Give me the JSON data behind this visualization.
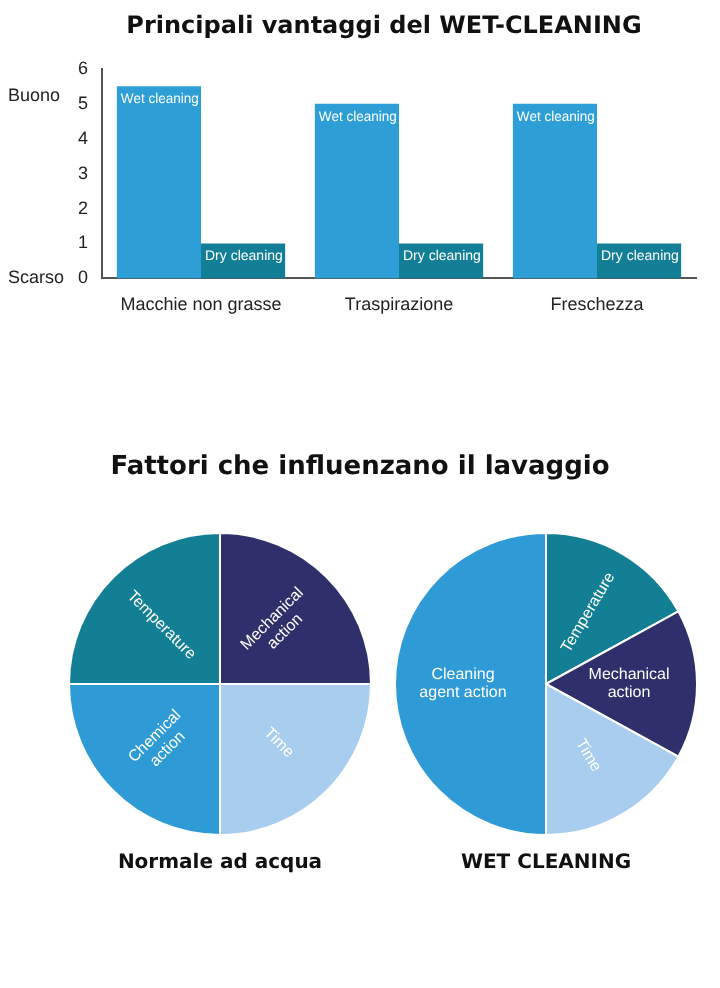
{
  "chart_data": [
    {
      "type": "bar",
      "title": "Principali vantaggi del WET-CLEANING",
      "categories": [
        "Macchie non grasse",
        "Traspirazione",
        "Freschezza"
      ],
      "series": [
        {
          "name": "Wet cleaning",
          "color": "#2e9fd6",
          "values": [
            5.5,
            5,
            5
          ]
        },
        {
          "name": "Dry cleaning",
          "color": "#127f96",
          "values": [
            1,
            1,
            1
          ]
        }
      ],
      "ylim": [
        0,
        6
      ],
      "yticks": [
        0,
        1,
        2,
        3,
        4,
        5,
        6
      ],
      "annotations": [
        "Buono",
        "Scarso"
      ],
      "grid": false,
      "legend": false
    },
    {
      "type": "pie",
      "title": "Fattori che influenzano il lavaggio",
      "subtitle": "Normale ad acqua",
      "categories": [
        "Mechanical action",
        "Time",
        "Chemical action",
        "Temperature"
      ],
      "values": [
        25,
        25,
        25,
        25
      ],
      "colors": [
        "#2f2f6b",
        "#a8cdef",
        "#2e9bd6",
        "#137f95"
      ],
      "legend": false
    },
    {
      "type": "pie",
      "subtitle": "WET CLEANING",
      "categories": [
        "Temperature",
        "Mechanical action",
        "Time",
        "Cleaning agent action"
      ],
      "values": [
        17,
        16,
        17,
        50
      ],
      "colors": [
        "#137f95",
        "#2f2f6b",
        "#a8cdef",
        "#2e9bd6"
      ],
      "legend": false
    }
  ]
}
